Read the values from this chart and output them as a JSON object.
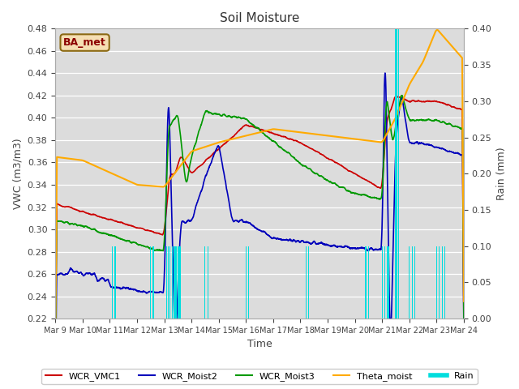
{
  "title": "Soil Moisture",
  "ylabel_left": "VWC (m3/m3)",
  "ylabel_right": "Rain (mm)",
  "xlabel": "Time",
  "ylim_left": [
    0.22,
    0.48
  ],
  "ylim_right": [
    0.0,
    0.4
  ],
  "xtick_labels": [
    "Mar 9",
    "Mar 10",
    "Mar 11",
    "Mar 12",
    "Mar 13",
    "Mar 14",
    "Mar 15",
    "Mar 16",
    "Mar 17",
    "Mar 18",
    "Mar 19",
    "Mar 20",
    "Mar 21",
    "Mar 22",
    "Mar 23",
    "Mar 24"
  ],
  "yticks_left": [
    0.22,
    0.24,
    0.26,
    0.28,
    0.3,
    0.32,
    0.34,
    0.36,
    0.38,
    0.4,
    0.42,
    0.44,
    0.46,
    0.48
  ],
  "yticks_right": [
    0.0,
    0.05,
    0.1,
    0.15,
    0.2,
    0.25,
    0.3,
    0.35,
    0.4
  ],
  "background_color": "#dcdcdc",
  "legend_colors": [
    "#cc0000",
    "#0000cc",
    "#00aa00",
    "#ffaa00",
    "#00cccc"
  ],
  "annotation_text": "BA_met",
  "annotation_color": "#8b0000",
  "annotation_bg": "#f5deb3",
  "title_fontsize": 11,
  "axis_label_fontsize": 9,
  "tick_fontsize": 8,
  "rain_color": "#00dddd",
  "line_colors": [
    "#cc0000",
    "#0000bb",
    "#009900",
    "#ffaa00"
  ]
}
